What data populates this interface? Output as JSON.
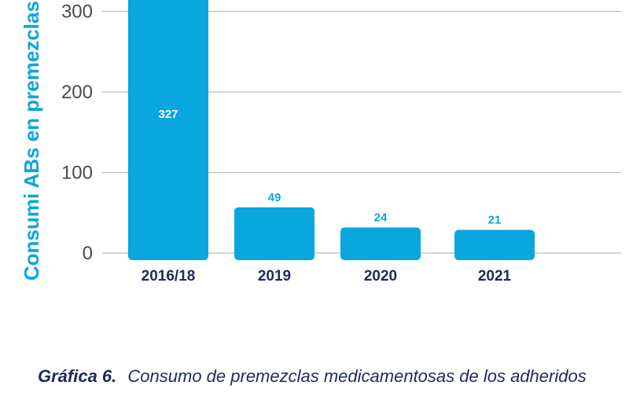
{
  "chart_data": {
    "type": "bar",
    "categories": [
      "2016/18",
      "2019",
      "2020",
      "2021"
    ],
    "values": [
      327,
      49,
      24,
      21
    ],
    "ylabel": "Consumi ABs en premezclas (mg",
    "yticks": [
      0,
      100,
      200,
      300
    ],
    "ylim": [
      0,
      325
    ],
    "grid": true,
    "bar_color": "#0aa6de",
    "colors": {
      "grid": "#bdbdbd",
      "value_inside": "#ffffff",
      "value_above": "#0aa6de"
    }
  },
  "caption": {
    "number": "Gráfica 6.",
    "text": "Consumo de premezclas medicamentosas de los adheridos"
  }
}
